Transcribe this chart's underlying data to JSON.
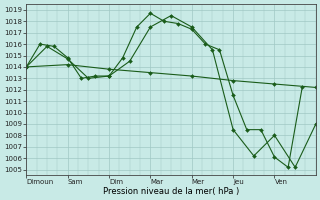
{
  "background_color": "#c8eae6",
  "grid_color": "#a0c8c4",
  "line_color": "#1a5c1a",
  "marker_color": "#1a5c1a",
  "xlabel": "Pression niveau de la mer( hPa )",
  "ylim_min": 1004.5,
  "ylim_max": 1019.5,
  "yticks": [
    1005,
    1006,
    1007,
    1008,
    1009,
    1010,
    1011,
    1012,
    1013,
    1014,
    1015,
    1016,
    1017,
    1018,
    1019
  ],
  "xtick_positions": [
    0,
    1,
    2,
    3,
    4,
    5,
    6
  ],
  "xtick_labels": [
    "Dimoun",
    "Sam",
    "Dim",
    "Mar",
    "Mer",
    "Jeu",
    "Ven"
  ],
  "xlim_min": 0,
  "xlim_max": 7,
  "series": [
    {
      "x": [
        0,
        0.33,
        0.67,
        1.0,
        1.33,
        1.67,
        2.0,
        2.33,
        2.67,
        3.0,
        3.33,
        3.67,
        4.0,
        4.33,
        4.67,
        5.0,
        5.33,
        5.67,
        6.0,
        6.33,
        6.67
      ],
      "y": [
        1014,
        1016,
        1015.8,
        1014.8,
        1013.0,
        1013.2,
        1013.2,
        1014.8,
        1017.5,
        1018.7,
        1018.0,
        1017.8,
        1017.3,
        1016.0,
        1015.5,
        1011.5,
        1008.5,
        1008.5,
        1006.1,
        1005.2,
        1012.2
      ]
    },
    {
      "x": [
        0,
        0.5,
        1.0,
        1.5,
        2.0,
        2.5,
        3.0,
        3.5,
        4.0,
        4.5,
        5.0,
        5.5,
        6.0,
        6.5,
        7.0
      ],
      "y": [
        1014,
        1015.8,
        1014.7,
        1013.0,
        1013.2,
        1014.5,
        1017.5,
        1018.5,
        1017.5,
        1015.5,
        1008.5,
        1006.2,
        1008.0,
        1005.2,
        1009.0
      ]
    },
    {
      "x": [
        0,
        1,
        2,
        3,
        4,
        5,
        6,
        7
      ],
      "y": [
        1014.0,
        1014.2,
        1013.8,
        1013.5,
        1013.2,
        1012.8,
        1012.5,
        1012.2
      ]
    }
  ]
}
